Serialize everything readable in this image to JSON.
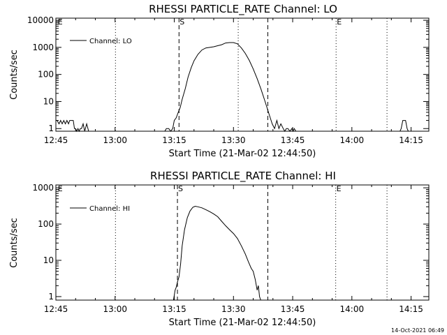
{
  "colors": {
    "background": "#ffffff",
    "ink": "#000000"
  },
  "timestamp": "14-Oct-2021 06:49",
  "chart_data": [
    {
      "type": "line",
      "title": "RHESSI PARTICLE_RATE Channel: LO",
      "xlabel": "Start Time (21-Mar-02 12:44:50)",
      "ylabel": "Counts/sec",
      "yscale": "log",
      "ylim": [
        0.8,
        12000
      ],
      "xlim_minutes": [
        0.0,
        94.5
      ],
      "xtick_minutes": [
        0,
        15,
        30,
        45,
        60,
        75,
        90
      ],
      "xtick_labels": [
        "12:45",
        "13:00",
        "13:15",
        "13:30",
        "13:45",
        "14:00",
        "14:15"
      ],
      "ytick_values": [
        1,
        10,
        100,
        1000,
        10000
      ],
      "ytick_labels": [
        "1",
        "10",
        "100",
        "1000",
        "10000"
      ],
      "legend": {
        "position": "top-left",
        "label": "Channel: LO"
      },
      "markers": [
        {
          "label": "E",
          "minute": 0.3,
          "style": "none"
        },
        {
          "label": "S",
          "minute": 31.2,
          "style": "dashed"
        },
        {
          "label": "",
          "minute": 53.7,
          "style": "dashed"
        },
        {
          "label": "",
          "minute": 15.1,
          "style": "dotted"
        },
        {
          "label": "",
          "minute": 46.2,
          "style": "dotted"
        },
        {
          "label": "E",
          "minute": 71.0,
          "style": "dotted"
        },
        {
          "label": "",
          "minute": 83.9,
          "style": "dotted"
        }
      ],
      "series": [
        {
          "name": "Channel: LO",
          "x": [
            0.0,
            0.3,
            0.8,
            1.2,
            1.6,
            2.0,
            2.4,
            2.8,
            3.2,
            3.5,
            3.8,
            4.1,
            4.4,
            4.7,
            5.0,
            5.3,
            5.6,
            5.9,
            6.2,
            6.5,
            6.9,
            7.3,
            7.8,
            8.3,
            27.6,
            28.0,
            28.6,
            29.1,
            29.6,
            30.0,
            30.5,
            31.0,
            31.5,
            32.0,
            32.8,
            33.5,
            34.3,
            35.0,
            36.0,
            37.0,
            38.0,
            39.0,
            40.0,
            41.0,
            42.0,
            43.0,
            44.0,
            45.0,
            46.0,
            47.0,
            48.0,
            49.0,
            50.0,
            51.0,
            52.0,
            53.0,
            54.0,
            54.8,
            55.4,
            56.0,
            56.5,
            57.0,
            57.6,
            58.0,
            58.4,
            58.8,
            59.3,
            59.8,
            60.1,
            60.4,
            60.8,
            61.0,
            87.2,
            87.5,
            87.9,
            88.2,
            88.6,
            89.0,
            89.3
          ],
          "y": [
            2.0,
            2.0,
            1.5,
            2.0,
            1.5,
            2.0,
            1.5,
            2.0,
            1.5,
            2.0,
            2.0,
            2.0,
            2.0,
            1.0,
            1.0,
            0.8,
            1.0,
            0.8,
            1.0,
            1.0,
            1.5,
            0.8,
            1.5,
            0.8,
            0.8,
            1.0,
            1.0,
            0.8,
            1.0,
            2.0,
            2.5,
            4.0,
            6.0,
            12.0,
            30.0,
            80.0,
            180.0,
            320.0,
            550.0,
            800.0,
            950.0,
            1000.0,
            1050.0,
            1150.0,
            1250.0,
            1450.0,
            1500.0,
            1500.0,
            1350.0,
            950.0,
            600.0,
            330.0,
            160.0,
            70.0,
            28.0,
            10.0,
            3.5,
            1.5,
            1.0,
            2.0,
            1.0,
            1.5,
            1.0,
            0.8,
            1.0,
            1.0,
            0.8,
            1.0,
            0.8,
            1.0,
            0.8,
            0.8,
            0.8,
            1.0,
            2.0,
            2.0,
            2.0,
            1.0,
            0.8
          ]
        }
      ]
    },
    {
      "type": "line",
      "title": "RHESSI PARTICLE_RATE Channel: HI",
      "xlabel": "Start Time (21-Mar-02 12:44:50)",
      "ylabel": "Counts/sec",
      "yscale": "log",
      "ylim": [
        0.8,
        1200
      ],
      "xlim_minutes": [
        0.0,
        94.5
      ],
      "xtick_minutes": [
        0,
        15,
        30,
        45,
        60,
        75,
        90
      ],
      "xtick_labels": [
        "12:45",
        "13:00",
        "13:15",
        "13:30",
        "13:45",
        "14:00",
        "14:15"
      ],
      "ytick_values": [
        1,
        10,
        100,
        1000
      ],
      "ytick_labels": [
        "1",
        "10",
        "100",
        "1000"
      ],
      "legend": {
        "position": "top-left",
        "label": "Channel: HI"
      },
      "markers": [
        {
          "label": "E",
          "minute": 0.3,
          "style": "none"
        },
        {
          "label": "S",
          "minute": 30.8,
          "style": "dashed"
        },
        {
          "label": "",
          "minute": 53.7,
          "style": "dashed"
        },
        {
          "label": "",
          "minute": 15.1,
          "style": "dotted"
        },
        {
          "label": "E",
          "minute": 70.9,
          "style": "dotted"
        },
        {
          "label": "",
          "minute": 83.9,
          "style": "dotted"
        }
      ],
      "series": [
        {
          "name": "Channel: HI",
          "x": [
            29.8,
            30.2,
            30.5,
            30.8,
            31.2,
            31.6,
            32.0,
            32.6,
            33.3,
            34.0,
            34.7,
            35.3,
            36.0,
            37.0,
            38.0,
            39.0,
            40.0,
            41.0,
            42.0,
            43.0,
            44.0,
            45.0,
            46.0,
            47.0,
            48.0,
            48.8,
            49.5,
            50.0,
            50.5,
            51.0,
            51.3,
            51.6,
            51.9
          ],
          "y": [
            0.8,
            1.5,
            1.8,
            2.5,
            3.5,
            8.0,
            25.0,
            70.0,
            150.0,
            230.0,
            290.0,
            310.0,
            300.0,
            280.0,
            250.0,
            220.0,
            190.0,
            160.0,
            120.0,
            90.0,
            70.0,
            55.0,
            40.0,
            25.0,
            15.0,
            9.0,
            6.0,
            5.0,
            3.0,
            1.5,
            2.0,
            1.0,
            0.8
          ]
        }
      ]
    }
  ]
}
